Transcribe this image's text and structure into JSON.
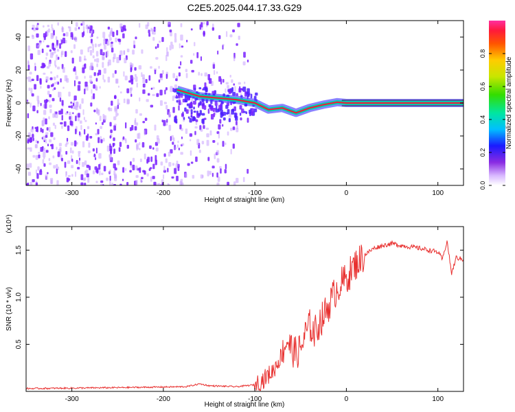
{
  "title": "C2E5.2025.044.17.33.G29",
  "chart_data": [
    {
      "type": "heatmap",
      "xlabel": "Height of straight line (km)",
      "ylabel": "Frequency (Hz)",
      "xlim": [
        -350,
        128
      ],
      "ylim": [
        -50,
        50
      ],
      "xticks": [
        -300,
        -200,
        -100,
        0,
        100
      ],
      "yticks": [
        -40,
        -20,
        0,
        20,
        40
      ],
      "colorbar": {
        "label": "Normalized spectral amplitude",
        "range": [
          0,
          1
        ],
        "ticks": [
          0.0,
          0.2,
          0.4,
          0.6,
          0.8
        ]
      },
      "traced_frequency_points": [
        {
          "x": -185,
          "y": 8
        },
        {
          "x": -160,
          "y": 4
        },
        {
          "x": -140,
          "y": 3
        },
        {
          "x": -120,
          "y": 2
        },
        {
          "x": -100,
          "y": 0
        },
        {
          "x": -85,
          "y": -4
        },
        {
          "x": -70,
          "y": -3
        },
        {
          "x": -55,
          "y": -6
        },
        {
          "x": -40,
          "y": -3
        },
        {
          "x": -25,
          "y": -1
        },
        {
          "x": -10,
          "y": 0.5
        },
        {
          "x": 0,
          "y": 0
        },
        {
          "x": 50,
          "y": 0
        },
        {
          "x": 100,
          "y": 0
        },
        {
          "x": 128,
          "y": 0
        }
      ],
      "colors": {
        "noise": "#7a22ff",
        "tone_core": "#e8203a",
        "tone_halo": "#00d0b0"
      }
    },
    {
      "type": "line",
      "xlabel": "Height of straight line (km)",
      "ylabel": "SNR (10 * v/v)",
      "scale_note": "(x10⁴)",
      "xlim": [
        -350,
        128
      ],
      "ylim": [
        0,
        1.75
      ],
      "xticks": [
        -300,
        -200,
        -100,
        0,
        100
      ],
      "yticks": [
        0.5,
        1.0,
        1.5
      ],
      "series": [
        {
          "color": "#e8302f",
          "x": [
            -350,
            -250,
            -175,
            -160,
            -150,
            -120,
            -100,
            -90,
            -80,
            -70,
            -65,
            -60,
            -55,
            -50,
            -45,
            -40,
            -35,
            -30,
            -25,
            -20,
            -15,
            -10,
            -5,
            0,
            10,
            20,
            30,
            40,
            50,
            60,
            80,
            100,
            105,
            110,
            115,
            120,
            128
          ],
          "y": [
            0.03,
            0.04,
            0.05,
            0.08,
            0.06,
            0.05,
            0.07,
            0.13,
            0.22,
            0.4,
            0.55,
            0.45,
            0.4,
            0.45,
            0.6,
            0.7,
            0.62,
            0.72,
            0.8,
            0.9,
            1.0,
            1.1,
            1.15,
            1.2,
            1.35,
            1.45,
            1.52,
            1.55,
            1.57,
            1.55,
            1.52,
            1.48,
            1.4,
            1.6,
            1.25,
            1.42,
            1.4
          ]
        }
      ]
    }
  ]
}
